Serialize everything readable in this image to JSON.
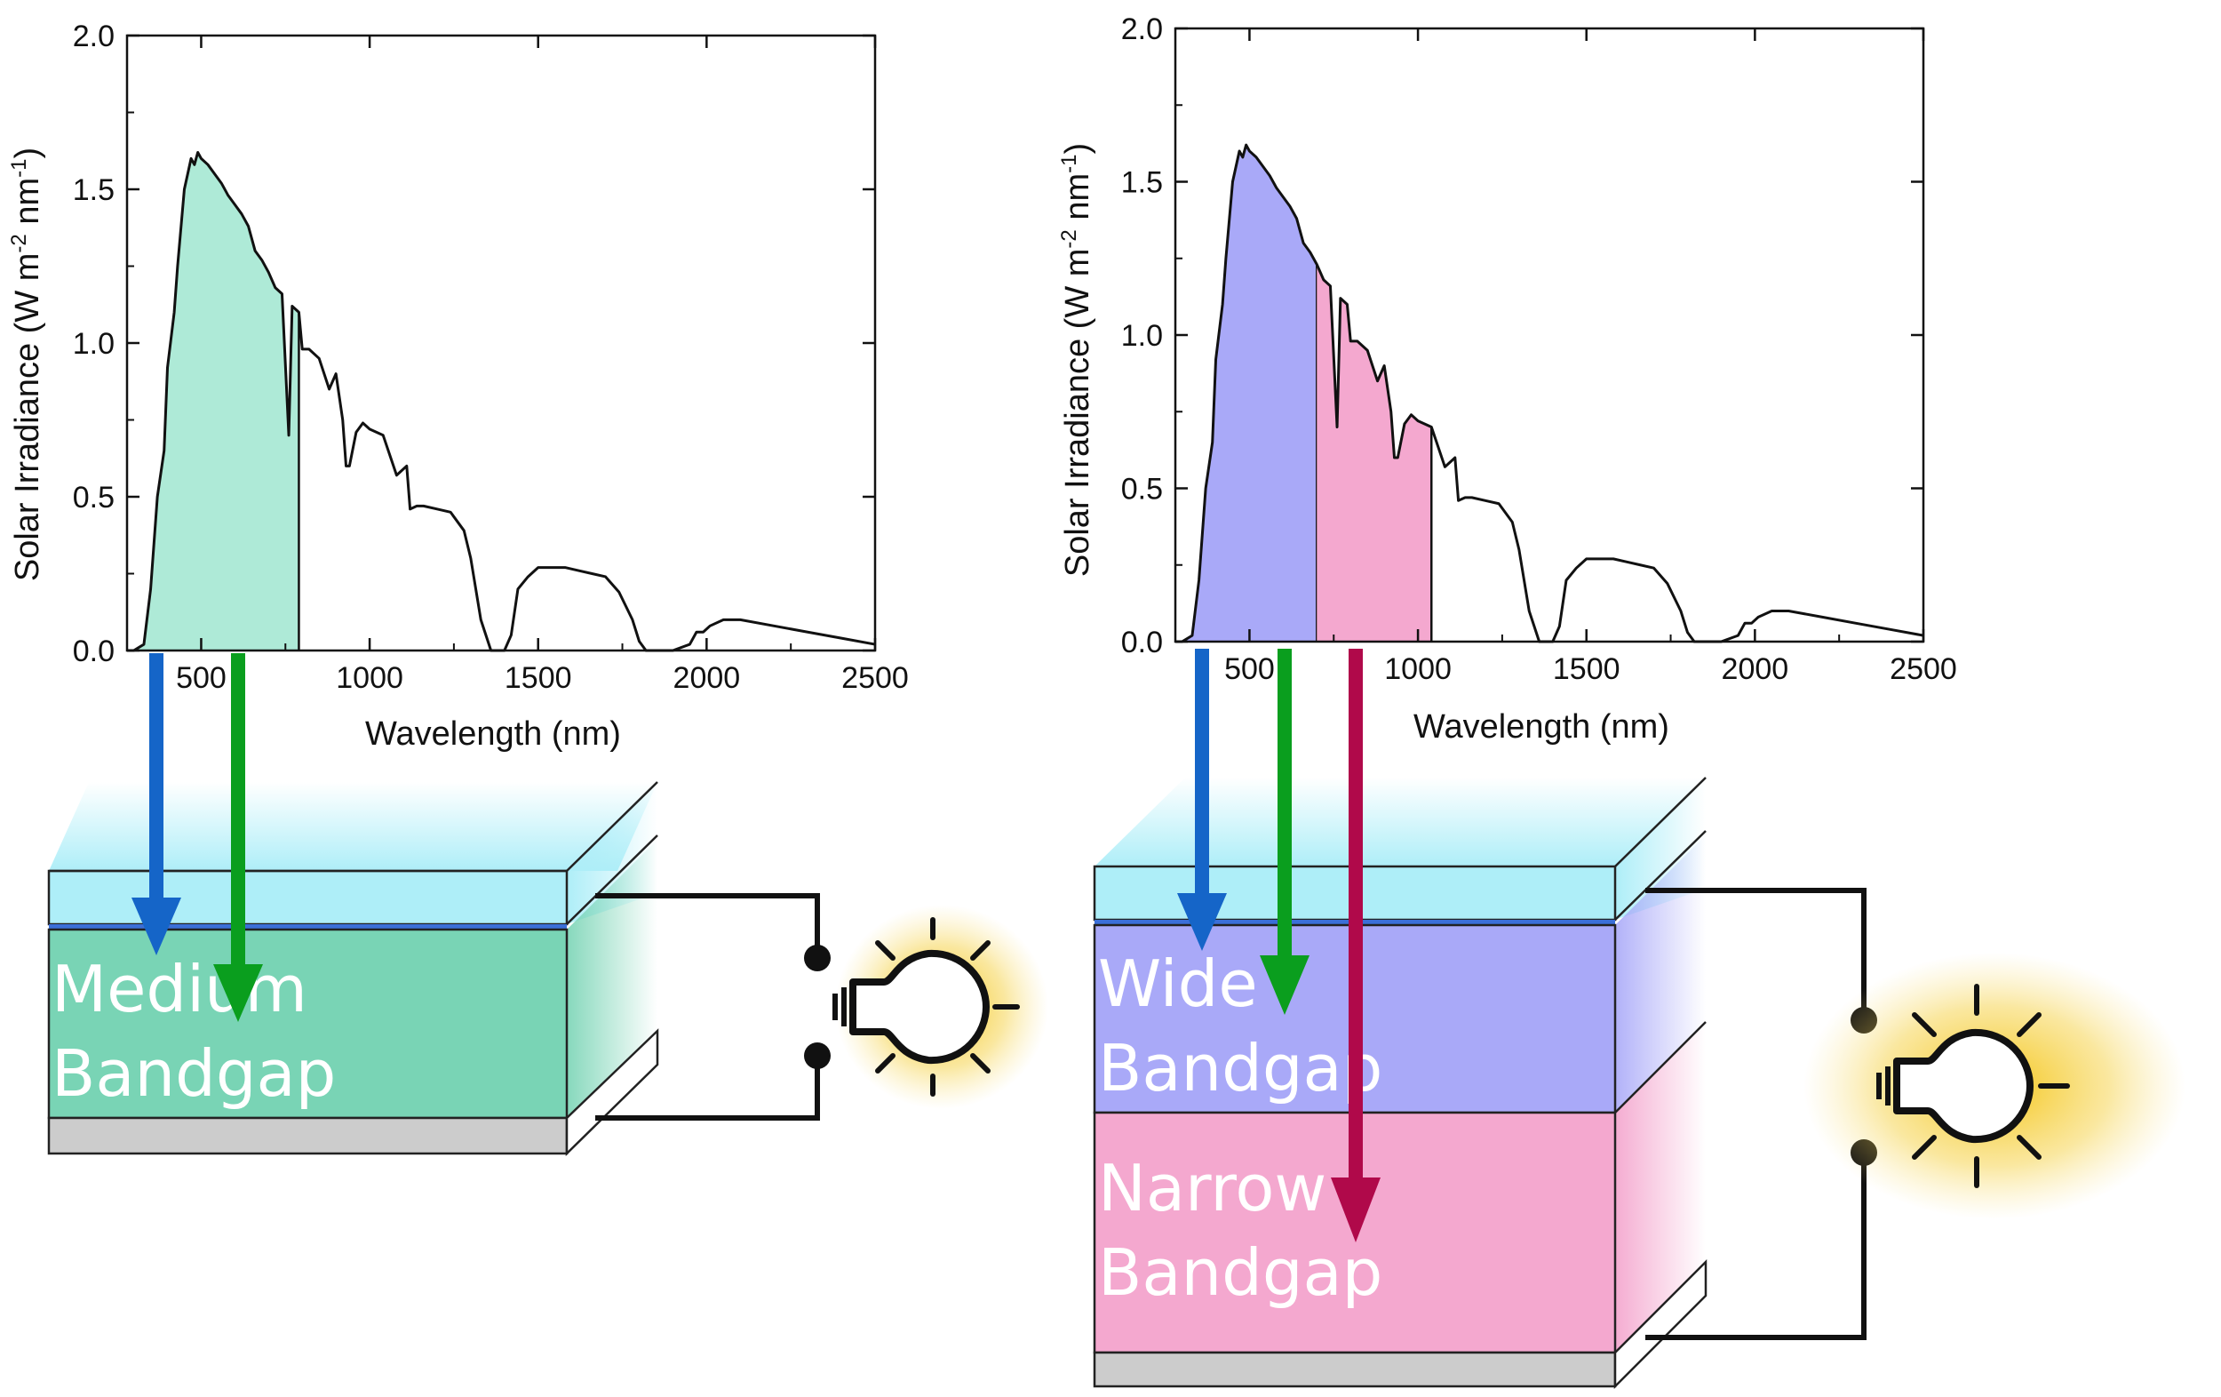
{
  "panels": [
    {
      "xlabel": "Wavelength (nm)",
      "ylabel_main": "Solar Irradiance (W m",
      "ylabel_sup1": "-2",
      "ylabel_mid": " nm",
      "ylabel_sup2": "-1",
      "ylabel_end": ")",
      "layers": [
        {
          "line1": "Medium",
          "line2": "Bandgap"
        }
      ]
    },
    {
      "xlabel": "Wavelength (nm)",
      "ylabel_main": "Solar Irradiance (W m",
      "ylabel_sup1": "-2",
      "ylabel_mid": " nm",
      "ylabel_sup2": "-1",
      "ylabel_end": ")",
      "layers": [
        {
          "line1": "Wide",
          "line2": "Bandgap"
        },
        {
          "line1": "Narrow",
          "line2": "Bandgap"
        }
      ]
    }
  ],
  "colors": {
    "medium_fill": "#aeead7",
    "medium_layer": "#79d4b5",
    "wide_fill": "#a9a9f8",
    "narrow_fill": "#f4a8cf",
    "glass": "#aeeef8",
    "substrate": "#cccccc",
    "arrow_blue": "#1565c8",
    "arrow_green": "#0a9e1e",
    "arrow_red": "#b0094a",
    "bulb_glow": "#f5c518"
  },
  "chart_data": [
    {
      "type": "area",
      "xlabel": "Wavelength (nm)",
      "ylabel": "Solar Irradiance (W m-2 nm-1)",
      "xlim": [
        280,
        2500
      ],
      "ylim": [
        0,
        2.0
      ],
      "xticks": [
        500,
        1000,
        1500,
        2000,
        2500
      ],
      "yticks": [
        0.0,
        0.5,
        1.0,
        1.5,
        2.0
      ],
      "yticklabels": [
        "0.0",
        "0.5",
        "1.0",
        "1.5",
        "2.0"
      ],
      "shaded_bands": [
        {
          "from": 280,
          "to": 790,
          "color": "#aeead7"
        }
      ],
      "series": [
        {
          "x": [
            280,
            300,
            330,
            350,
            370,
            390,
            400,
            420,
            430,
            450,
            470,
            480,
            490,
            500,
            520,
            540,
            560,
            580,
            600,
            620,
            640,
            660,
            680,
            700,
            720,
            740,
            760,
            770,
            790,
            800,
            820,
            850,
            880,
            900,
            920,
            930,
            940,
            960,
            980,
            1000,
            1040,
            1080,
            1110,
            1120,
            1140,
            1160,
            1200,
            1240,
            1280,
            1300,
            1330,
            1360,
            1380,
            1400,
            1420,
            1440,
            1470,
            1500,
            1540,
            1580,
            1620,
            1660,
            1700,
            1740,
            1780,
            1800,
            1820,
            1840,
            1860,
            1900,
            1950,
            1970,
            1990,
            2010,
            2050,
            2100,
            2200,
            2300,
            2400,
            2500
          ],
          "y": [
            0.0,
            0.0,
            0.02,
            0.2,
            0.5,
            0.65,
            0.92,
            1.1,
            1.25,
            1.5,
            1.6,
            1.58,
            1.62,
            1.6,
            1.58,
            1.55,
            1.52,
            1.48,
            1.45,
            1.42,
            1.38,
            1.3,
            1.27,
            1.23,
            1.18,
            1.16,
            0.7,
            1.12,
            1.1,
            0.98,
            0.98,
            0.95,
            0.85,
            0.9,
            0.75,
            0.6,
            0.6,
            0.71,
            0.74,
            0.72,
            0.7,
            0.57,
            0.6,
            0.46,
            0.47,
            0.47,
            0.46,
            0.45,
            0.39,
            0.3,
            0.1,
            0.0,
            0.0,
            0.0,
            0.05,
            0.2,
            0.24,
            0.27,
            0.27,
            0.27,
            0.26,
            0.25,
            0.24,
            0.19,
            0.1,
            0.03,
            0.0,
            0.0,
            0.0,
            0.0,
            0.02,
            0.06,
            0.06,
            0.08,
            0.1,
            0.1,
            0.08,
            0.06,
            0.04,
            0.02
          ]
        }
      ]
    },
    {
      "type": "area",
      "xlabel": "Wavelength (nm)",
      "ylabel": "Solar Irradiance (W m-2 nm-1)",
      "xlim": [
        280,
        2500
      ],
      "ylim": [
        0,
        2.0
      ],
      "xticks": [
        500,
        1000,
        1500,
        2000,
        2500
      ],
      "yticks": [
        0.0,
        0.5,
        1.0,
        1.5,
        2.0
      ],
      "yticklabels": [
        "0.0",
        "0.5",
        "1.0",
        "1.5",
        "2.0"
      ],
      "shaded_bands": [
        {
          "from": 280,
          "to": 700,
          "color": "#a9a9f8"
        },
        {
          "from": 700,
          "to": 1040,
          "color": "#f4a8cf"
        }
      ],
      "series": [
        {
          "x": [
            280,
            300,
            330,
            350,
            370,
            390,
            400,
            420,
            430,
            450,
            470,
            480,
            490,
            500,
            520,
            540,
            560,
            580,
            600,
            620,
            640,
            660,
            680,
            700,
            720,
            740,
            760,
            770,
            790,
            800,
            820,
            850,
            880,
            900,
            920,
            930,
            940,
            960,
            980,
            1000,
            1040,
            1080,
            1110,
            1120,
            1140,
            1160,
            1200,
            1240,
            1280,
            1300,
            1330,
            1360,
            1380,
            1400,
            1420,
            1440,
            1470,
            1500,
            1540,
            1580,
            1620,
            1660,
            1700,
            1740,
            1780,
            1800,
            1820,
            1840,
            1860,
            1900,
            1950,
            1970,
            1990,
            2010,
            2050,
            2100,
            2200,
            2300,
            2400,
            2500
          ],
          "y": [
            0.0,
            0.0,
            0.02,
            0.2,
            0.5,
            0.65,
            0.92,
            1.1,
            1.25,
            1.5,
            1.6,
            1.58,
            1.62,
            1.6,
            1.58,
            1.55,
            1.52,
            1.48,
            1.45,
            1.42,
            1.38,
            1.3,
            1.27,
            1.23,
            1.18,
            1.16,
            0.7,
            1.12,
            1.1,
            0.98,
            0.98,
            0.95,
            0.85,
            0.9,
            0.75,
            0.6,
            0.6,
            0.71,
            0.74,
            0.72,
            0.7,
            0.57,
            0.6,
            0.46,
            0.47,
            0.47,
            0.46,
            0.45,
            0.39,
            0.3,
            0.1,
            0.0,
            0.0,
            0.0,
            0.05,
            0.2,
            0.24,
            0.27,
            0.27,
            0.27,
            0.26,
            0.25,
            0.24,
            0.19,
            0.1,
            0.03,
            0.0,
            0.0,
            0.0,
            0.0,
            0.02,
            0.06,
            0.06,
            0.08,
            0.1,
            0.1,
            0.08,
            0.06,
            0.04,
            0.02
          ]
        }
      ]
    }
  ]
}
